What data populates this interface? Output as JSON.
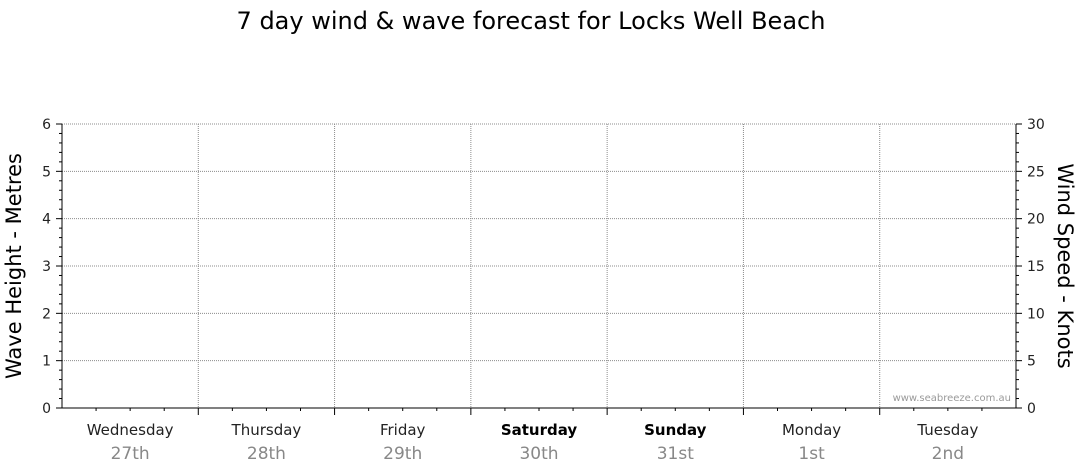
{
  "chart_data": {
    "type": "line",
    "title": "7 day wind & wave forecast for Locks Well Beach",
    "ylabel_left": "Wave Height - Metres",
    "ylabel_right": "Wind Speed - Knots",
    "ylim_left": [
      0,
      6
    ],
    "ylim_right": [
      0,
      30
    ],
    "yticks_left": [
      "0",
      "1",
      "2",
      "3",
      "4",
      "5",
      "6"
    ],
    "yticks_right": [
      "0",
      "5",
      "10",
      "15",
      "20",
      "25",
      "30"
    ],
    "grid": true,
    "days": [
      {
        "name": "Wednesday",
        "date": "27th",
        "bold": false
      },
      {
        "name": "Thursday",
        "date": "28th",
        "bold": false
      },
      {
        "name": "Friday",
        "date": "29th",
        "bold": false
      },
      {
        "name": "Saturday",
        "date": "30th",
        "bold": true
      },
      {
        "name": "Sunday",
        "date": "31st",
        "bold": true
      },
      {
        "name": "Monday",
        "date": "1st",
        "bold": false
      },
      {
        "name": "Tuesday",
        "date": "2nd",
        "bold": false
      }
    ],
    "series": []
  },
  "watermark": "www.seabreeze.com.au"
}
